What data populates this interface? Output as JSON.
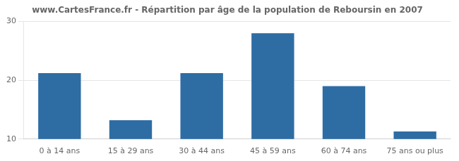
{
  "chart_data": {
    "type": "bar",
    "title": "www.CartesFrance.fr - Répartition par âge de la population de Reboursin en 2007",
    "categories": [
      "0 à 14 ans",
      "15 à 29 ans",
      "30 à 44 ans",
      "45 à 59 ans",
      "60 à 74 ans",
      "75 ans ou plus"
    ],
    "values": [
      21.2,
      13.2,
      21.2,
      28.0,
      19.0,
      11.3
    ],
    "color": "#2e6da4",
    "ylim": [
      10,
      30
    ],
    "yticks": [
      10,
      20,
      30
    ],
    "grid": true
  }
}
